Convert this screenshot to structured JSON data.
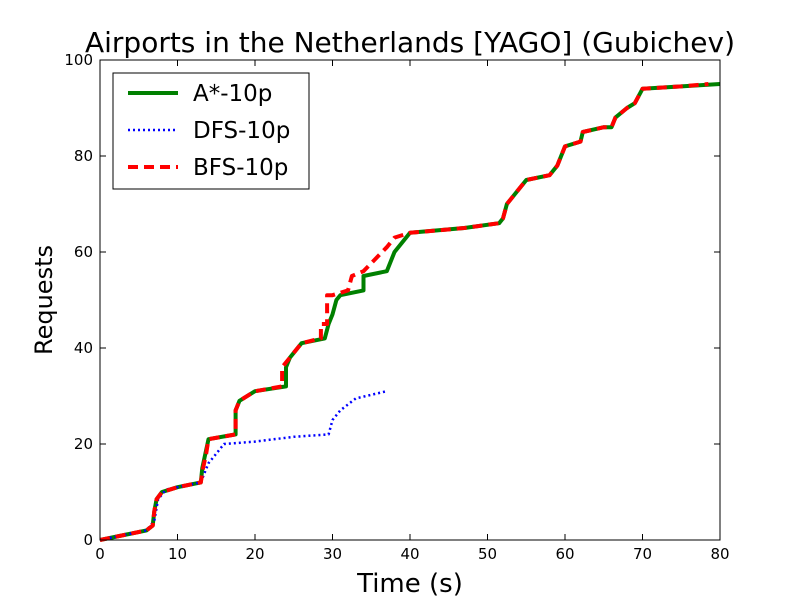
{
  "chart_data": {
    "type": "line",
    "title": "Airports in the Netherlands [YAGO] (Gubichev)",
    "xlabel": "Time (s)",
    "ylabel": "Requests",
    "xlim": [
      0,
      80
    ],
    "ylim": [
      0,
      100
    ],
    "xticks": [
      0,
      10,
      20,
      30,
      40,
      50,
      60,
      70,
      80
    ],
    "yticks": [
      0,
      20,
      40,
      60,
      80,
      100
    ],
    "grid": false,
    "legend_position": "top-left",
    "series": [
      {
        "name": "A*-10p",
        "color": "#008000",
        "style": "solid",
        "x": [
          0,
          6,
          6.8,
          7.0,
          7.3,
          8.0,
          10,
          13,
          13.2,
          13.6,
          14,
          17.5,
          17.5,
          18,
          20,
          24,
          24,
          24.5,
          26,
          29,
          29.5,
          30,
          30.5,
          31,
          34,
          34,
          37,
          38,
          40,
          47,
          51.5,
          52,
          52.5,
          54,
          55,
          58,
          59,
          60,
          62,
          62.3,
          65,
          66,
          66.5,
          68,
          69,
          70,
          75,
          80
        ],
        "y": [
          0,
          2,
          3,
          6,
          8.5,
          10,
          11,
          12,
          15,
          18,
          21,
          22,
          27,
          29,
          31,
          32,
          36,
          38,
          41,
          42,
          45,
          47,
          50,
          51,
          52,
          55,
          56,
          60,
          64,
          65,
          66,
          67,
          70,
          73,
          75,
          76,
          78,
          82,
          83,
          85,
          86,
          86,
          88,
          90,
          91,
          94,
          94.5,
          95
        ]
      },
      {
        "name": "DFS-10p",
        "color": "#0000ff",
        "style": "dotted",
        "x": [
          0,
          6,
          7,
          7.5,
          8.5,
          10,
          13,
          13.5,
          14,
          15,
          16,
          20,
          25,
          29.5,
          30,
          31,
          33,
          37
        ],
        "y": [
          0,
          2,
          4,
          8.5,
          10.5,
          11,
          12,
          14,
          16,
          18,
          20,
          20.5,
          21.5,
          22,
          25,
          27,
          29.5,
          31
        ]
      },
      {
        "name": "BFS-10p",
        "color": "#ff0000",
        "style": "dashed",
        "x": [
          0,
          6,
          6.8,
          7.0,
          7.3,
          8.0,
          10,
          13,
          13.3,
          13.7,
          14,
          17.5,
          17.5,
          18,
          20,
          23.5,
          23.5,
          24.5,
          26,
          28.5,
          28.5,
          29.3,
          29.3,
          30,
          32,
          32.5,
          34,
          37,
          38,
          40,
          47,
          51.5,
          52,
          52.5,
          54,
          55,
          58,
          59,
          60,
          62,
          62.3,
          65,
          66,
          66.5,
          68,
          69,
          70,
          75,
          78.5
        ],
        "y": [
          0,
          2,
          3,
          6,
          8.5,
          10,
          11,
          12,
          15,
          18,
          21,
          22,
          27,
          29,
          31,
          32,
          36,
          38,
          41,
          42,
          45,
          45,
          51,
          51,
          52,
          55,
          56,
          61,
          63,
          64,
          65,
          66,
          67,
          70,
          73,
          75,
          76,
          78,
          82,
          83,
          85,
          86,
          86,
          88,
          90,
          91,
          94,
          94.5,
          95
        ]
      }
    ]
  }
}
